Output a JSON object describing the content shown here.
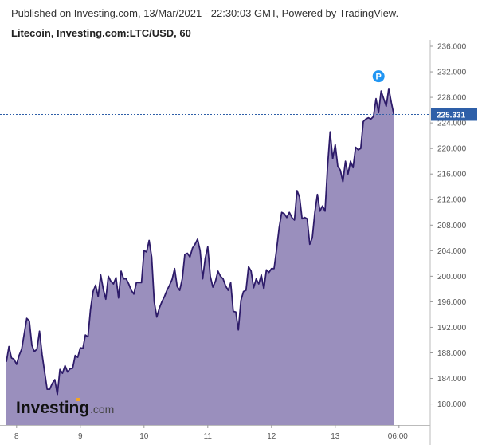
{
  "header": {
    "published": "Published on Investing.com, 13/Mar/2021 - 22:30:03 GMT, Powered by TradingView.",
    "title": "Litecoin, Investing.com:LTC/USD, 60"
  },
  "logo": {
    "brand": "Investing",
    "suffix": ".com"
  },
  "marker": {
    "label": "P"
  },
  "colors": {
    "line": "#2d1b69",
    "fill": "#9a8fbd",
    "current": "#2e5fa8",
    "marker": "#2196f3",
    "axis": "#bbbbbb"
  },
  "chart_data": {
    "type": "area",
    "series": [
      {
        "values": [
          186.6,
          189.0,
          187.2,
          187.0,
          186.2,
          187.6,
          188.6,
          191.0,
          193.4,
          193.0,
          189.2,
          188.2,
          188.6,
          191.4,
          187.8,
          185.0,
          182.3,
          182.3,
          183.2,
          183.8,
          181.5,
          185.4,
          184.8,
          186.0,
          185.0,
          185.5,
          185.6,
          187.6,
          187.3,
          188.8,
          188.7,
          190.8,
          190.5,
          194.8,
          197.6,
          198.6,
          196.8,
          200.2,
          198.0,
          196.4,
          200.0,
          199.2,
          198.8,
          199.8,
          196.6,
          200.8,
          199.6,
          199.6,
          198.8,
          197.8,
          197.2,
          199.0,
          199.0,
          199.0,
          204.0,
          203.8,
          205.6,
          203.0,
          196.0,
          193.6,
          195.0,
          196.0,
          196.8,
          197.8,
          198.6,
          199.5,
          201.2,
          198.4,
          197.8,
          199.6,
          203.4,
          203.6,
          203.0,
          204.4,
          205.0,
          205.8,
          204.0,
          199.6,
          202.8,
          204.6,
          200.0,
          198.3,
          199.2,
          200.8,
          200.0,
          199.6,
          198.5,
          197.8,
          199.0,
          194.5,
          194.4,
          191.6,
          196.2,
          197.6,
          197.8,
          201.5,
          200.8,
          198.2,
          199.6,
          198.8,
          200.2,
          198.0,
          201.0,
          200.6,
          201.2,
          201.2,
          204.2,
          207.6,
          210.0,
          209.8,
          209.2,
          210.0,
          209.2,
          208.8,
          213.4,
          212.4,
          209.0,
          209.2,
          209.0,
          205.0,
          206.0,
          210.0,
          212.8,
          210.2,
          211.0,
          210.2,
          217.2,
          222.6,
          218.4,
          220.6,
          217.2,
          216.6,
          214.8,
          218.0,
          216.0,
          218.0,
          217.0,
          220.2,
          219.8,
          220.0,
          224.2,
          224.6,
          224.8,
          224.6,
          225.0,
          227.8,
          225.6,
          229.0,
          227.8,
          226.6,
          229.4,
          227.2,
          225.3
        ]
      }
    ],
    "x_tick_labels": [
      "8",
      "9",
      "10",
      "11",
      "12",
      "13",
      "06:00"
    ],
    "x_tick_index": [
      4,
      29,
      54,
      79,
      104,
      129,
      154
    ],
    "y_ticks": [
      180,
      184,
      188,
      192,
      196,
      200,
      204,
      208,
      212,
      216,
      220,
      224,
      228,
      232,
      236
    ],
    "y_tick_labels": [
      "180.000",
      "184.000",
      "188.000",
      "192.000",
      "196.000",
      "200.000",
      "204.000",
      "208.000",
      "212.000",
      "216.000",
      "220.000",
      "224.000",
      "228.000",
      "232.000",
      "236.000"
    ],
    "ylim": [
      176.7,
      237.0
    ],
    "current_value": 225.331,
    "current_label": "225.331",
    "marker_index": 146,
    "marker_value": 231.3,
    "grid": false
  }
}
